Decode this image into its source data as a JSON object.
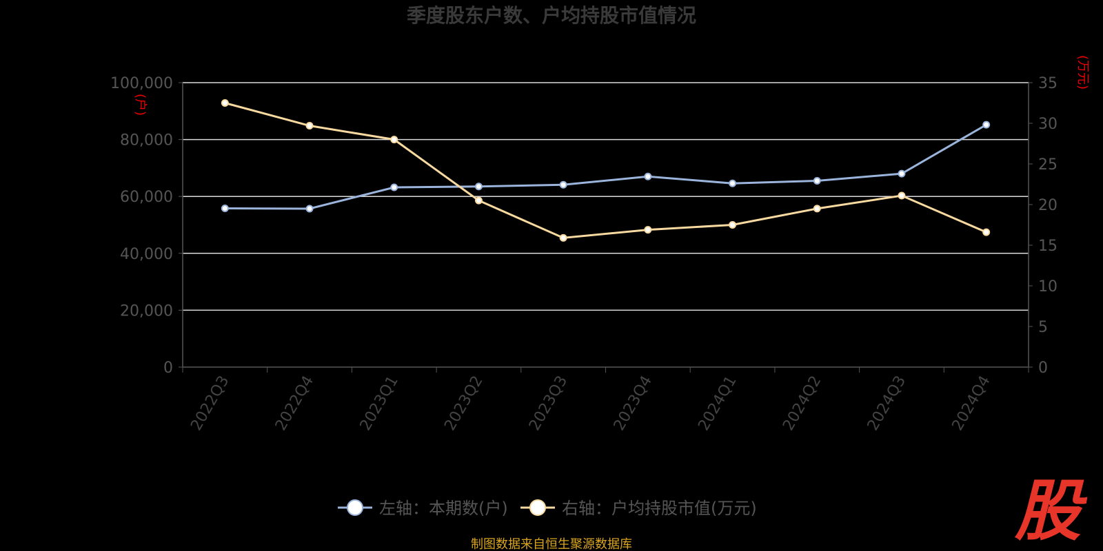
{
  "chart_data": {
    "type": "line",
    "title": "季度股东户数、户均持股市值情况",
    "categories": [
      "2022Q3",
      "2022Q4",
      "2023Q1",
      "2023Q2",
      "2023Q3",
      "2023Q4",
      "2024Q1",
      "2024Q2",
      "2024Q3",
      "2024Q4"
    ],
    "y_left": {
      "unit": "(户)",
      "ylim": [
        0,
        100000
      ],
      "ticks": [
        "0",
        "20,000",
        "40,000",
        "60,000",
        "80,000",
        "100,000"
      ],
      "tick_values": [
        0,
        20000,
        40000,
        60000,
        80000,
        100000
      ]
    },
    "y_right": {
      "unit": "(万元)",
      "ylim": [
        0,
        35
      ],
      "ticks": [
        "0",
        "5",
        "10",
        "15",
        "20",
        "25",
        "30",
        "35"
      ],
      "tick_values": [
        0,
        5,
        10,
        15,
        20,
        25,
        30,
        35
      ]
    },
    "series": [
      {
        "name": "左轴：本期数(户)",
        "axis": "left",
        "color": "#9ab4dc",
        "values": [
          55800,
          55700,
          63200,
          63500,
          64100,
          67000,
          64600,
          65500,
          68000,
          85200
        ]
      },
      {
        "name": "右轴：户均持股市值(万元)",
        "axis": "right",
        "color": "#f8d9a0",
        "values": [
          32.5,
          29.7,
          28.0,
          20.5,
          15.9,
          16.9,
          17.5,
          19.5,
          21.1,
          16.6
        ]
      }
    ],
    "grid": true,
    "legend": "bottom"
  },
  "source_text": "制图数据来自恒生聚源数据库",
  "logo_text": "股"
}
